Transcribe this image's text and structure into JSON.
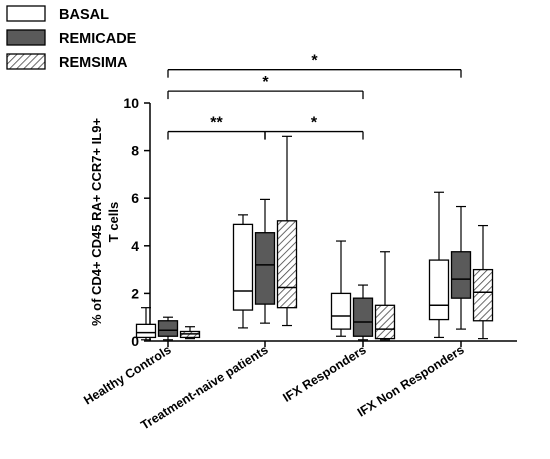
{
  "chart_data": {
    "type": "boxplot",
    "title": "",
    "ylabel_lines": [
      "% of CD4+ CD45 RA+ CCR7+ IL9+",
      "T cells"
    ],
    "xlabel": "",
    "ylim": [
      0,
      10
    ],
    "yticks": [
      "0",
      "2",
      "4",
      "6",
      "8",
      "10"
    ],
    "categories": [
      "Healthy Controls",
      "Treatment-naive patients",
      "IFX Responders",
      "IFX Non Responders"
    ],
    "legend_position": "top-left",
    "series": [
      {
        "name": "BASAL",
        "fill": "#ffffff",
        "pattern": "none",
        "boxes": [
          {
            "min": 0.05,
            "q1": 0.15,
            "median": 0.35,
            "q3": 0.7,
            "max": 1.4
          },
          {
            "min": 0.55,
            "q1": 1.3,
            "median": 2.1,
            "q3": 4.9,
            "max": 5.3
          },
          {
            "min": 0.2,
            "q1": 0.5,
            "median": 1.05,
            "q3": 2.0,
            "max": 4.2
          },
          {
            "min": 0.15,
            "q1": 0.9,
            "median": 1.5,
            "q3": 3.4,
            "max": 6.25
          }
        ]
      },
      {
        "name": "REMICADE",
        "fill": "#5a5a5a",
        "pattern": "none",
        "boxes": [
          {
            "min": 0.05,
            "q1": 0.2,
            "median": 0.45,
            "q3": 0.85,
            "max": 1.0
          },
          {
            "min": 0.75,
            "q1": 1.55,
            "median": 3.2,
            "q3": 4.55,
            "max": 5.95
          },
          {
            "min": 0.05,
            "q1": 0.2,
            "median": 0.8,
            "q3": 1.8,
            "max": 2.35
          },
          {
            "min": 0.5,
            "q1": 1.8,
            "median": 2.6,
            "q3": 3.75,
            "max": 5.65
          }
        ]
      },
      {
        "name": "REMSIMA",
        "fill": "#ffffff",
        "pattern": "hatch",
        "boxes": [
          {
            "min": 0.1,
            "q1": 0.15,
            "median": 0.3,
            "q3": 0.4,
            "max": 0.6
          },
          {
            "min": 0.65,
            "q1": 1.4,
            "median": 2.25,
            "q3": 5.05,
            "max": 8.6
          },
          {
            "min": 0.05,
            "q1": 0.1,
            "median": 0.5,
            "q3": 1.5,
            "max": 3.75
          },
          {
            "min": 0.1,
            "q1": 0.85,
            "median": 2.05,
            "q3": 3.0,
            "max": 4.85
          }
        ]
      }
    ],
    "significance": [
      {
        "from": "Healthy Controls",
        "to": "IFX Non Responders",
        "label": "*",
        "level": 11.4
      },
      {
        "from": "Healthy Controls",
        "to": "IFX Responders",
        "label": "*",
        "level": 10.5
      },
      {
        "from": "Healthy Controls",
        "to": "Treatment-naive patients",
        "label": "**",
        "level": 8.8
      },
      {
        "from": "Treatment-naive patients",
        "to": "IFX Responders",
        "label": "*",
        "level": 8.8
      }
    ]
  },
  "colors": {
    "axis": "#000000",
    "remicade": "#5a5a5a"
  }
}
